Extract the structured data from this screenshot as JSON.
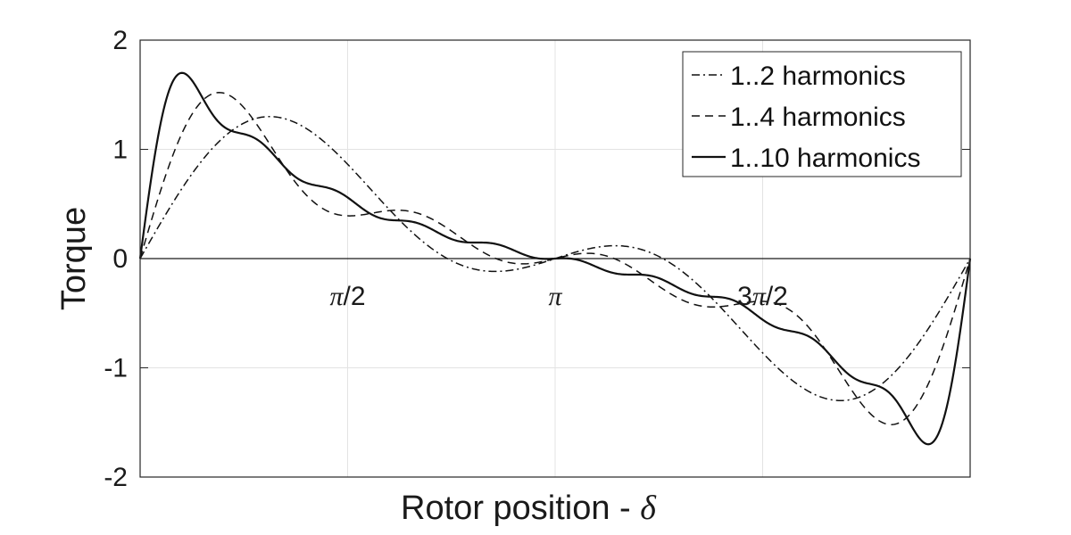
{
  "chart_data": {
    "type": "line",
    "xlabel_text": "Rotor position - ",
    "xlabel_symbol": "δ",
    "ylabel": "Torque",
    "xlim": [
      0,
      6.2832
    ],
    "ylim": [
      -2,
      2
    ],
    "grid": true,
    "legend_position": "top-right",
    "yticks": [
      {
        "value": 2,
        "label": "2"
      },
      {
        "value": 1,
        "label": "1"
      },
      {
        "value": 0,
        "label": "0"
      },
      {
        "value": -1,
        "label": "-1"
      },
      {
        "value": -2,
        "label": "-2"
      }
    ],
    "xticks": [
      {
        "value": 1.5708,
        "label": "π/2"
      },
      {
        "value": 3.1416,
        "label": "π"
      },
      {
        "value": 4.7124,
        "label": "3π/2"
      }
    ],
    "series": [
      {
        "name": "1..2 harmonics",
        "style": "dashdot",
        "harmonics": 2
      },
      {
        "name": "1..4 harmonics",
        "style": "dashed",
        "harmonics": 4
      },
      {
        "name": "1..10 harmonics",
        "style": "solid",
        "harmonics": 10
      }
    ]
  }
}
